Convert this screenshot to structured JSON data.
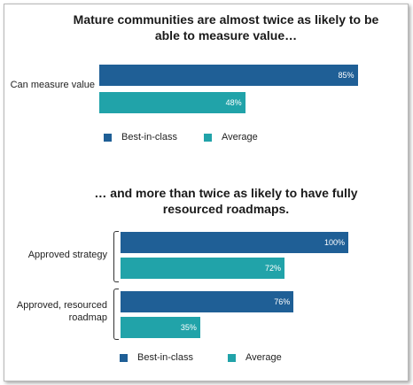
{
  "chart_data": [
    {
      "type": "bar",
      "orientation": "horizontal",
      "title": "Mature communities are almost twice as likely to be able to measure value…",
      "categories": [
        "Can measure value"
      ],
      "series": [
        {
          "name": "Best-in-class",
          "values": [
            85
          ],
          "labels": [
            "85%"
          ]
        },
        {
          "name": "Average",
          "values": [
            48
          ],
          "labels": [
            "48%"
          ]
        }
      ],
      "unit": "%",
      "xlim": [
        0,
        100
      ],
      "legend": "bottom"
    },
    {
      "type": "bar",
      "orientation": "horizontal",
      "title": "… and more than twice as likely to have fully resourced roadmaps.",
      "categories": [
        "Approved strategy",
        "Approved, resourced roadmap"
      ],
      "series": [
        {
          "name": "Best-in-class",
          "values": [
            100,
            76
          ],
          "labels": [
            "100%",
            "76%"
          ]
        },
        {
          "name": "Average",
          "values": [
            72,
            35
          ],
          "labels": [
            "72%",
            "35%"
          ]
        }
      ],
      "unit": "%",
      "xlim": [
        0,
        100
      ],
      "legend": "bottom"
    }
  ],
  "colors": {
    "best_in_class": "#1f5f96",
    "average": "#21a3a9"
  }
}
